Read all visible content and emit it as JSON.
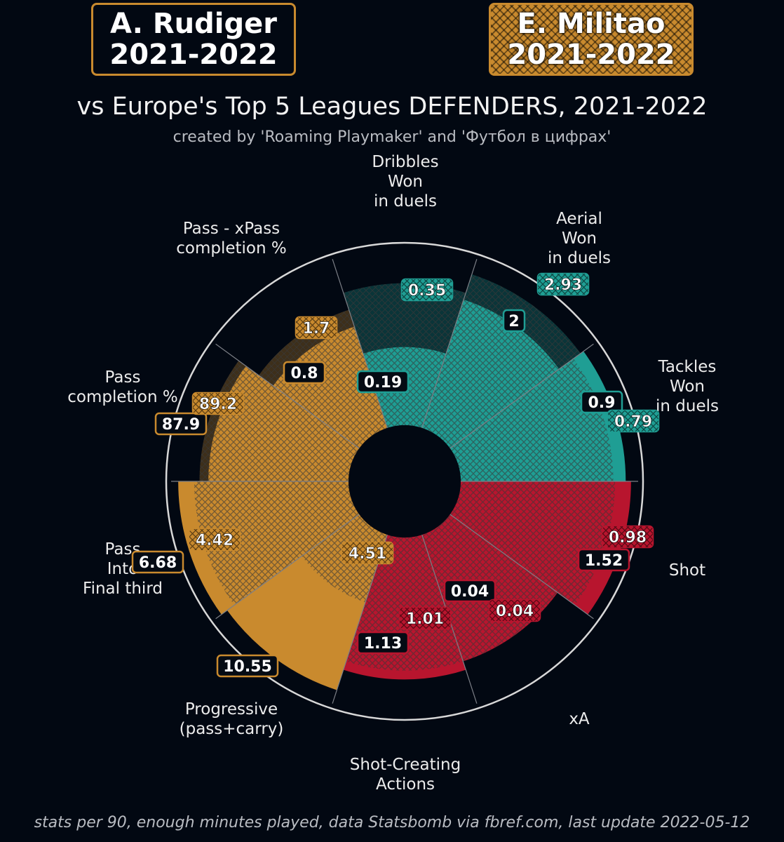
{
  "header": {
    "player_a_name": "A. Rudiger",
    "player_a_season": "2021-2022",
    "player_b_name": "E. Militao",
    "player_b_season": "2021-2022",
    "title": "vs Europe's Top 5 Leagues DEFENDERS, 2021-2022",
    "subtitle": "created by 'Roaming Playmaker' and 'Футбол в цифрах'",
    "footnote": "stats per 90, enough minutes played, data Statsbomb via fbref.com, last update 2022-05-12"
  },
  "colors": {
    "background": "#020812",
    "passing": "#c98a2e",
    "defending": "#1f9e94",
    "attacking": "#b8152e",
    "ring": "#d8d8d8"
  },
  "chart_data": {
    "type": "polar_bar",
    "value_scale": "percentile",
    "series": [
      {
        "name": "A. Rudiger",
        "style": "solid"
      },
      {
        "name": "E. Militao",
        "style": "hatched"
      }
    ],
    "categories": [
      {
        "label": "Pass completion %",
        "group": "passing",
        "rudiger": 87.9,
        "militao": 89.2,
        "rudiger_pct": 0.79,
        "militao_pct": 0.84
      },
      {
        "label": "Pass - xPass completion %",
        "group": "passing",
        "rudiger": 0.8,
        "militao": 1.7,
        "rudiger_pct": 0.6,
        "militao_pct": 0.7
      },
      {
        "label": "Dribbles Won in duels",
        "group": "defending",
        "rudiger": 0.19,
        "militao": 0.35,
        "rudiger_pct": 0.44,
        "militao_pct": 0.8
      },
      {
        "label": "Aerial Won in duels",
        "group": "defending",
        "rudiger": 2.0,
        "militao": 2.93,
        "rudiger_pct": 0.76,
        "militao_pct": 0.91
      },
      {
        "label": "Tackles Won in duels",
        "group": "defending",
        "rudiger": 0.9,
        "militao": 0.79,
        "rudiger_pct": 0.93,
        "militao_pct": 0.86
      },
      {
        "label": "Shot",
        "group": "attacking",
        "rudiger": 1.52,
        "militao": 0.98,
        "rudiger_pct": 0.96,
        "militao_pct": 0.87
      },
      {
        "label": "xA",
        "group": "attacking",
        "rudiger": 0.04,
        "militao": 0.04,
        "rudiger_pct": 0.75,
        "militao_pct": 0.75
      },
      {
        "label": "Shot-Creating Actions",
        "group": "attacking",
        "rudiger": 1.13,
        "militao": 1.01,
        "rudiger_pct": 0.8,
        "militao_pct": 0.75
      },
      {
        "label": "Progressive (pass+carry)",
        "group": "passing",
        "rudiger": 10.55,
        "militao": 4.51,
        "rudiger_pct": 0.92,
        "militao_pct": 0.4
      },
      {
        "label": "Pass Into Final third",
        "group": "passing",
        "rudiger": 6.68,
        "militao": 4.42,
        "rudiger_pct": 0.96,
        "militao_pct": 0.87
      }
    ]
  }
}
